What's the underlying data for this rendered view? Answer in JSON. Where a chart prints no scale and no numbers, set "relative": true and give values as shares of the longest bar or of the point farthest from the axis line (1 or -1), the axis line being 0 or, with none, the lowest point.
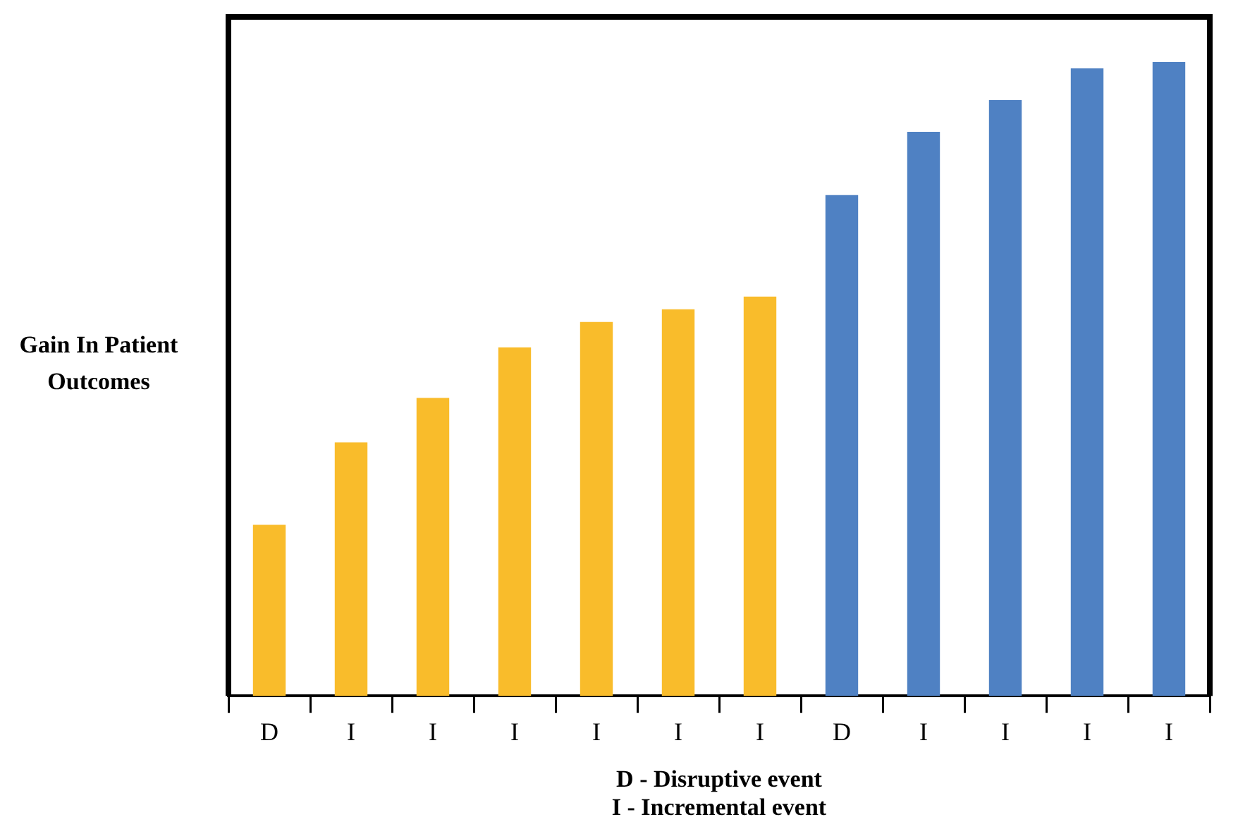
{
  "chart_data": {
    "type": "bar",
    "relative": true,
    "ylabel": "Gain In Patient Outcomes",
    "xlabel": "D - Disruptive event\nI - Incremental event",
    "categories": [
      "D",
      "I",
      "I",
      "I",
      "I",
      "I",
      "I",
      "D",
      "I",
      "I",
      "I",
      "I"
    ],
    "values": [
      0.27,
      0.4,
      0.47,
      0.55,
      0.59,
      0.61,
      0.63,
      0.79,
      0.89,
      0.94,
      0.99,
      1
    ],
    "colors": [
      "#f9bc2b",
      "#f9bc2b",
      "#f9bc2b",
      "#f9bc2b",
      "#f9bc2b",
      "#f9bc2b",
      "#f9bc2b",
      "#4f81c3",
      "#4f81c3",
      "#4f81c3",
      "#4f81c3",
      "#4f81c3"
    ],
    "grid": false,
    "legend": false
  }
}
